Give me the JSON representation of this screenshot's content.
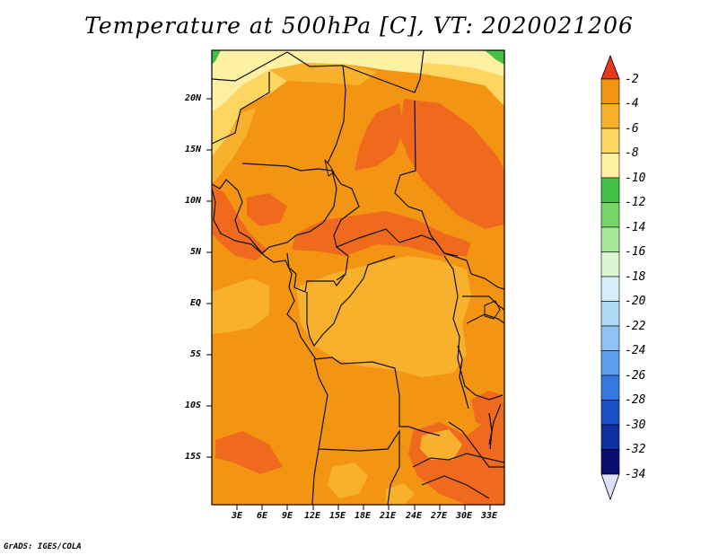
{
  "title": "Temperature at 500hPa [C], VT: 2020021206",
  "credit": "GrADS: IGES/COLA",
  "lat_labels": [
    "20N",
    "15N",
    "10N",
    "5N",
    "EQ",
    "5S",
    "10S",
    "15S"
  ],
  "lon_labels": [
    "3E",
    "6E",
    "9E",
    "12E",
    "15E",
    "18E",
    "21E",
    "24E",
    "27E",
    "30E",
    "33E"
  ],
  "colorbar": {
    "labels": [
      "-2",
      "-4",
      "-6",
      "-8",
      "-10",
      "-12",
      "-14",
      "-16",
      "-18",
      "-20",
      "-22",
      "-24",
      "-26",
      "-28",
      "-30",
      "-32",
      "-34"
    ],
    "colors": [
      "#f06a1d",
      "#f39512",
      "#f8b12c",
      "#fdd661",
      "#fff0a4",
      "#45c046",
      "#75d666",
      "#a9e89b",
      "#daf7d2",
      "#d6eef9",
      "#b1daf7",
      "#8ec3f4",
      "#5c9fee",
      "#3777e2",
      "#1d52c7",
      "#0d2fa3",
      "#0a0e6e"
    ],
    "top_arrow_color": "#e23a1a",
    "bottom_arrow_color": "#e0e0f8"
  },
  "field_colors": {
    "orange_dark": "#f06a1d",
    "orange": "#f39512",
    "orange_light": "#f8b12c",
    "yellow": "#fdd661",
    "pale_yellow": "#fff0a4",
    "green": "#45c046"
  }
}
